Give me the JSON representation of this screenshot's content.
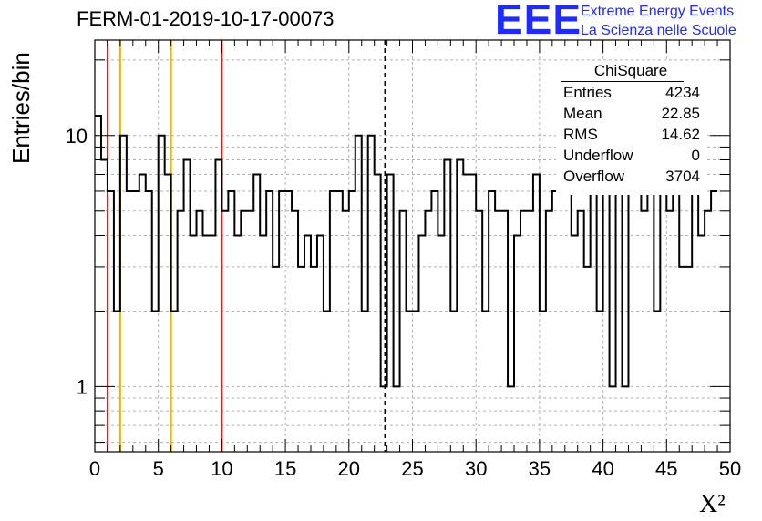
{
  "header": {
    "title": "FERM-01-2019-10-17-00073"
  },
  "logo": {
    "mark": "EEE",
    "line1": "Extreme Energy Events",
    "line2": "La Scienza nelle Scuole"
  },
  "stats": {
    "title": "ChiSquare",
    "rows": [
      {
        "key": "Entries",
        "value": "4234"
      },
      {
        "key": "Mean",
        "value": "22.85"
      },
      {
        "key": "RMS",
        "value": "14.62"
      },
      {
        "key": "Underflow",
        "value": "0"
      },
      {
        "key": "Overflow",
        "value": "3704"
      }
    ]
  },
  "chart_data": {
    "type": "histogram-step",
    "title": "FERM-01-2019-10-17-00073",
    "xlabel": "X²",
    "ylabel": "Entries/bin",
    "xlim": [
      0,
      50
    ],
    "ylim": [
      0.55,
      24
    ],
    "log_y": true,
    "grid": true,
    "bin_width": 0.5,
    "x_ticks": [
      "0",
      "5",
      "10",
      "15",
      "20",
      "25",
      "30",
      "35",
      "40",
      "45",
      "50"
    ],
    "y_tick_labels": [
      {
        "value": 1,
        "label": "1"
      },
      {
        "value": 10,
        "label": "10"
      }
    ],
    "values": [
      12,
      8,
      6,
      2,
      10,
      6,
      6,
      7,
      6,
      2,
      10,
      7,
      2,
      5,
      8,
      4,
      5,
      4,
      4,
      8,
      5,
      6,
      4,
      5,
      5,
      7,
      4,
      6,
      3,
      6,
      6,
      5,
      3,
      4,
      3,
      4,
      2,
      6,
      6,
      5,
      6,
      10,
      2,
      10,
      7,
      1,
      7,
      1,
      5,
      2,
      2,
      4,
      5,
      6,
      4,
      8,
      2,
      8,
      7,
      7,
      5,
      2,
      6,
      5,
      5,
      1,
      4,
      5,
      5,
      7,
      2,
      5,
      6,
      8,
      8,
      4,
      5,
      3,
      6,
      2,
      6,
      1,
      7,
      1,
      6,
      6,
      5,
      8,
      2,
      7,
      5,
      7,
      3,
      3,
      6,
      4,
      5,
      6
    ],
    "vertical_lines": [
      {
        "x": 1,
        "color": "#d62020",
        "style": "solid"
      },
      {
        "x": 2,
        "color": "#e8b800",
        "style": "solid"
      },
      {
        "x": 6,
        "color": "#e8b800",
        "style": "solid"
      },
      {
        "x": 10,
        "color": "#d62020",
        "style": "solid"
      },
      {
        "x": 22.85,
        "color": "#000000",
        "style": "dashed"
      }
    ]
  }
}
